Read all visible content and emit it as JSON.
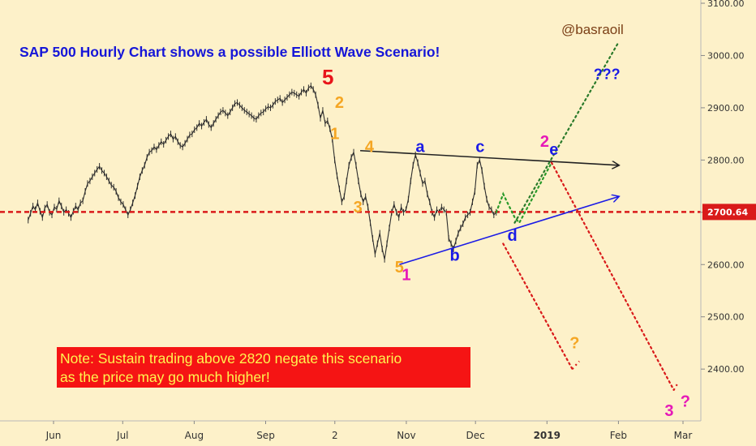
{
  "chart_data": {
    "type": "line",
    "title": "SAP 500 Hourly Chart shows a possible Elliott Wave Scenario!",
    "author": "@basraoil",
    "note_lines": [
      "Note: Sustain trading above 2820 negate this scenario",
      "as the price may go much higher!"
    ],
    "ylim": [
      2290,
      3110
    ],
    "y_ticks": [
      "3100.00",
      "3000.00",
      "2900.00",
      "2800.00",
      "2700.00",
      "2600.00",
      "2500.00",
      "2400.00"
    ],
    "x_labels": [
      "Jun",
      "Jul",
      "Aug",
      "Sep",
      "2",
      "Nov",
      "Dec",
      "2019",
      "Feb",
      "Mar"
    ],
    "current_price": 2700.64,
    "current_price_label": "2700.64",
    "series": [
      {
        "values": [
          2685,
          2698,
          2712,
          2705,
          2718,
          2702,
          2690,
          2708,
          2715,
          2700,
          2695,
          2710,
          2706,
          2722,
          2712,
          2700,
          2705,
          2698,
          2690,
          2702,
          2712,
          2705,
          2718,
          2722,
          2740,
          2755,
          2760,
          2768,
          2775,
          2782,
          2788,
          2780,
          2775,
          2768,
          2760,
          2752,
          2748,
          2740,
          2728,
          2720,
          2715,
          2705,
          2695,
          2705,
          2718,
          2732,
          2750,
          2768,
          2780,
          2790,
          2805,
          2815,
          2818,
          2825,
          2820,
          2828,
          2835,
          2830,
          2838,
          2845,
          2850,
          2840,
          2845,
          2835,
          2828,
          2825,
          2832,
          2840,
          2848,
          2850,
          2858,
          2862,
          2870,
          2865,
          2872,
          2878,
          2868,
          2862,
          2870,
          2878,
          2885,
          2892,
          2895,
          2890,
          2885,
          2892,
          2900,
          2908,
          2910,
          2905,
          2900,
          2895,
          2892,
          2888,
          2885,
          2880,
          2878,
          2885,
          2890,
          2892,
          2898,
          2902,
          2900,
          2905,
          2912,
          2915,
          2918,
          2910,
          2915,
          2920,
          2925,
          2930,
          2928,
          2925,
          2922,
          2930,
          2935,
          2928,
          2938,
          2942,
          2935,
          2925,
          2905,
          2880,
          2895,
          2870,
          2875,
          2860,
          2840,
          2800,
          2770,
          2745,
          2720,
          2730,
          2760,
          2790,
          2805,
          2815,
          2790,
          2760,
          2735,
          2720,
          2730,
          2710,
          2680,
          2650,
          2620,
          2640,
          2660,
          2630,
          2610,
          2640,
          2670,
          2700,
          2715,
          2700,
          2690,
          2710,
          2700,
          2705,
          2725,
          2760,
          2790,
          2810,
          2795,
          2775,
          2755,
          2760,
          2735,
          2720,
          2700,
          2690,
          2705,
          2700,
          2710,
          2705,
          2700,
          2650,
          2640,
          2630,
          2645,
          2660,
          2670,
          2678,
          2690,
          2695,
          2700,
          2720,
          2740,
          2790,
          2800,
          2780,
          2750,
          2725,
          2710,
          2705,
          2695,
          2700
        ],
        "date_range": [
          "2018-05-21",
          "2018-12-10"
        ]
      },
      {
        "name": "projected triangle wave e",
        "x": [
          "2018-12-10",
          "2018-12-13",
          "2018-12-18",
          "2018-12-20",
          "2019-01-03"
        ],
        "values": [
          2700,
          2735,
          2690,
          2680,
          2795
        ]
      },
      {
        "name": "projected wave 3 down",
        "x": [
          "2019-01-03",
          "2019-02-25"
        ],
        "values": [
          2795,
          2360
        ]
      },
      {
        "name": "alternate bullish wave",
        "x": [
          "2018-12-18",
          "2019-02-01"
        ],
        "values": [
          2680,
          3025
        ]
      },
      {
        "name": "alternate breakdown",
        "x": [
          "2018-12-13",
          "2019-01-12"
        ],
        "values": [
          2640,
          2400
        ]
      }
    ],
    "trendlines": [
      {
        "name": "upper triangle line",
        "x": [
          "2018-10-12",
          "2019-02-01"
        ],
        "values": [
          2818,
          2790
        ]
      },
      {
        "name": "lower triangle line",
        "x": [
          "2018-10-29",
          "2019-02-01"
        ],
        "values": [
          2600,
          2730
        ]
      }
    ],
    "wave_labels": [
      {
        "text": "5",
        "x": "2018-09-28",
        "y": 2945,
        "color": "#e8141a"
      },
      {
        "text": "2",
        "x": "2018-10-03",
        "y": 2900,
        "color": "#f5a623"
      },
      {
        "text": "1",
        "x": "2018-10-01",
        "y": 2840,
        "color": "#f5a623"
      },
      {
        "text": "4",
        "x": "2018-10-16",
        "y": 2815,
        "color": "#f5a623"
      },
      {
        "text": "3",
        "x": "2018-10-11",
        "y": 2700,
        "color": "#f5a623"
      },
      {
        "text": "5",
        "x": "2018-10-29",
        "y": 2585,
        "color": "#f5a623"
      },
      {
        "text": "1",
        "x": "2018-11-01",
        "y": 2570,
        "color": "#e619b8"
      },
      {
        "text": "a",
        "x": "2018-11-07",
        "y": 2815,
        "color": "#1b1be6"
      },
      {
        "text": "b",
        "x": "2018-11-22",
        "y": 2607,
        "color": "#1b1be6"
      },
      {
        "text": "c",
        "x": "2018-12-03",
        "y": 2815,
        "color": "#1b1be6"
      },
      {
        "text": "d",
        "x": "2018-12-17",
        "y": 2645,
        "color": "#1b1be6"
      },
      {
        "text": "2",
        "x": "2018-12-31",
        "y": 2825,
        "color": "#e619b8"
      },
      {
        "text": "e",
        "x": "2019-01-04",
        "y": 2810,
        "color": "#1b1be6"
      },
      {
        "text": "???",
        "x": "2019-01-27",
        "y": 2955,
        "color": "#1b1be6"
      },
      {
        "text": "?",
        "x": "2019-01-13",
        "y": 2440,
        "color": "#f5a623"
      },
      {
        "text": "3",
        "x": "2019-02-23",
        "y": 2310,
        "color": "#e619b8"
      },
      {
        "text": "?",
        "x": "2019-03-02",
        "y": 2328,
        "color": "#e619b8"
      }
    ],
    "grid": false
  }
}
